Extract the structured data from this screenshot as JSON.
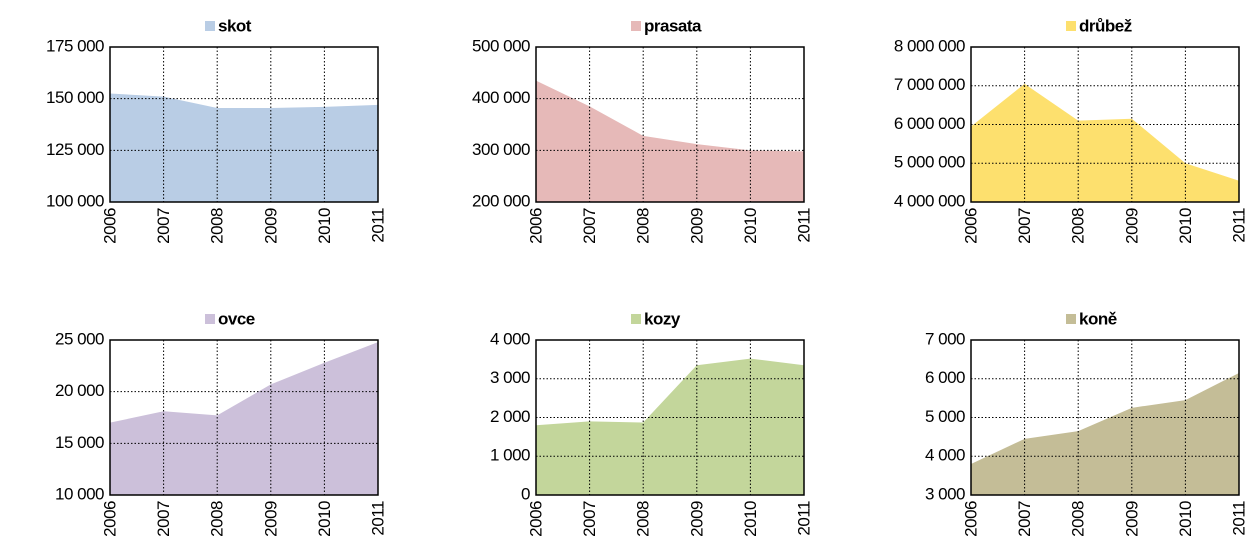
{
  "chart_data": [
    {
      "type": "area",
      "categories": [
        "2006",
        "2007",
        "2008",
        "2009",
        "2010",
        "2011"
      ],
      "series": [
        {
          "name": "skot",
          "color": "#b9cde5",
          "values": [
            152500,
            151000,
            145500,
            145500,
            146000,
            147000
          ]
        }
      ],
      "ylim": [
        100000,
        175000
      ],
      "yticks": [
        {
          "value": 100000,
          "label": "100 000"
        },
        {
          "value": 125000,
          "label": "125 000"
        },
        {
          "value": 150000,
          "label": "150 000"
        },
        {
          "value": 175000,
          "label": "175 000"
        }
      ],
      "grid": true
    },
    {
      "type": "area",
      "categories": [
        "2006",
        "2007",
        "2008",
        "2009",
        "2010",
        "2011"
      ],
      "series": [
        {
          "name": "prasata",
          "color": "#e6b9b8",
          "values": [
            435000,
            385000,
            328000,
            312000,
            300000,
            298000
          ]
        }
      ],
      "ylim": [
        200000,
        500000
      ],
      "yticks": [
        {
          "value": 200000,
          "label": "200 000"
        },
        {
          "value": 300000,
          "label": "300 000"
        },
        {
          "value": 400000,
          "label": "400 000"
        },
        {
          "value": 500000,
          "label": "500 000"
        }
      ],
      "grid": true
    },
    {
      "type": "area",
      "categories": [
        "2006",
        "2007",
        "2008",
        "2009",
        "2010",
        "2011"
      ],
      "series": [
        {
          "name": "drůbež",
          "color": "#fde06e",
          "values": [
            5950000,
            7050000,
            6100000,
            6150000,
            5000000,
            4550000
          ]
        }
      ],
      "ylim": [
        4000000,
        8000000
      ],
      "yticks": [
        {
          "value": 4000000,
          "label": "4 000 000"
        },
        {
          "value": 5000000,
          "label": "5 000 000"
        },
        {
          "value": 6000000,
          "label": "6 000 000"
        },
        {
          "value": 7000000,
          "label": "7 000 000"
        },
        {
          "value": 8000000,
          "label": "8 000 000"
        }
      ],
      "grid": true
    },
    {
      "type": "area",
      "categories": [
        "2006",
        "2007",
        "2008",
        "2009",
        "2010",
        "2011"
      ],
      "series": [
        {
          "name": "ovce",
          "color": "#ccc0da",
          "values": [
            17000,
            18100,
            17700,
            20700,
            22800,
            24800
          ]
        }
      ],
      "ylim": [
        10000,
        25000
      ],
      "yticks": [
        {
          "value": 10000,
          "label": "10 000"
        },
        {
          "value": 15000,
          "label": "15 000"
        },
        {
          "value": 20000,
          "label": "20 000"
        },
        {
          "value": 25000,
          "label": "25 000"
        }
      ],
      "grid": true
    },
    {
      "type": "area",
      "categories": [
        "2006",
        "2007",
        "2008",
        "2009",
        "2010",
        "2011"
      ],
      "series": [
        {
          "name": "kozy",
          "color": "#c3d69b",
          "values": [
            1800,
            1900,
            1870,
            3350,
            3520,
            3350
          ]
        }
      ],
      "ylim": [
        0,
        4000
      ],
      "yticks": [
        0,
        {
          "value": 1000,
          "label": "1 000"
        },
        {
          "value": 2000,
          "label": "2 000"
        },
        {
          "value": 3000,
          "label": "3 000"
        },
        {
          "value": 4000,
          "label": "4 000"
        }
      ],
      "grid": true
    },
    {
      "type": "area",
      "categories": [
        "2006",
        "2007",
        "2008",
        "2009",
        "2010",
        "2011"
      ],
      "series": [
        {
          "name": "koně",
          "color": "#c4bd97",
          "values": [
            3800,
            4450,
            4650,
            5250,
            5450,
            6150
          ]
        }
      ],
      "ylim": [
        3000,
        7000
      ],
      "yticks": [
        {
          "value": 3000,
          "label": "3 000"
        },
        {
          "value": 4000,
          "label": "4 000"
        },
        {
          "value": 5000,
          "label": "5 000"
        },
        {
          "value": 6000,
          "label": "6 000"
        },
        {
          "value": 7000,
          "label": "7 000"
        }
      ],
      "grid": true
    }
  ]
}
